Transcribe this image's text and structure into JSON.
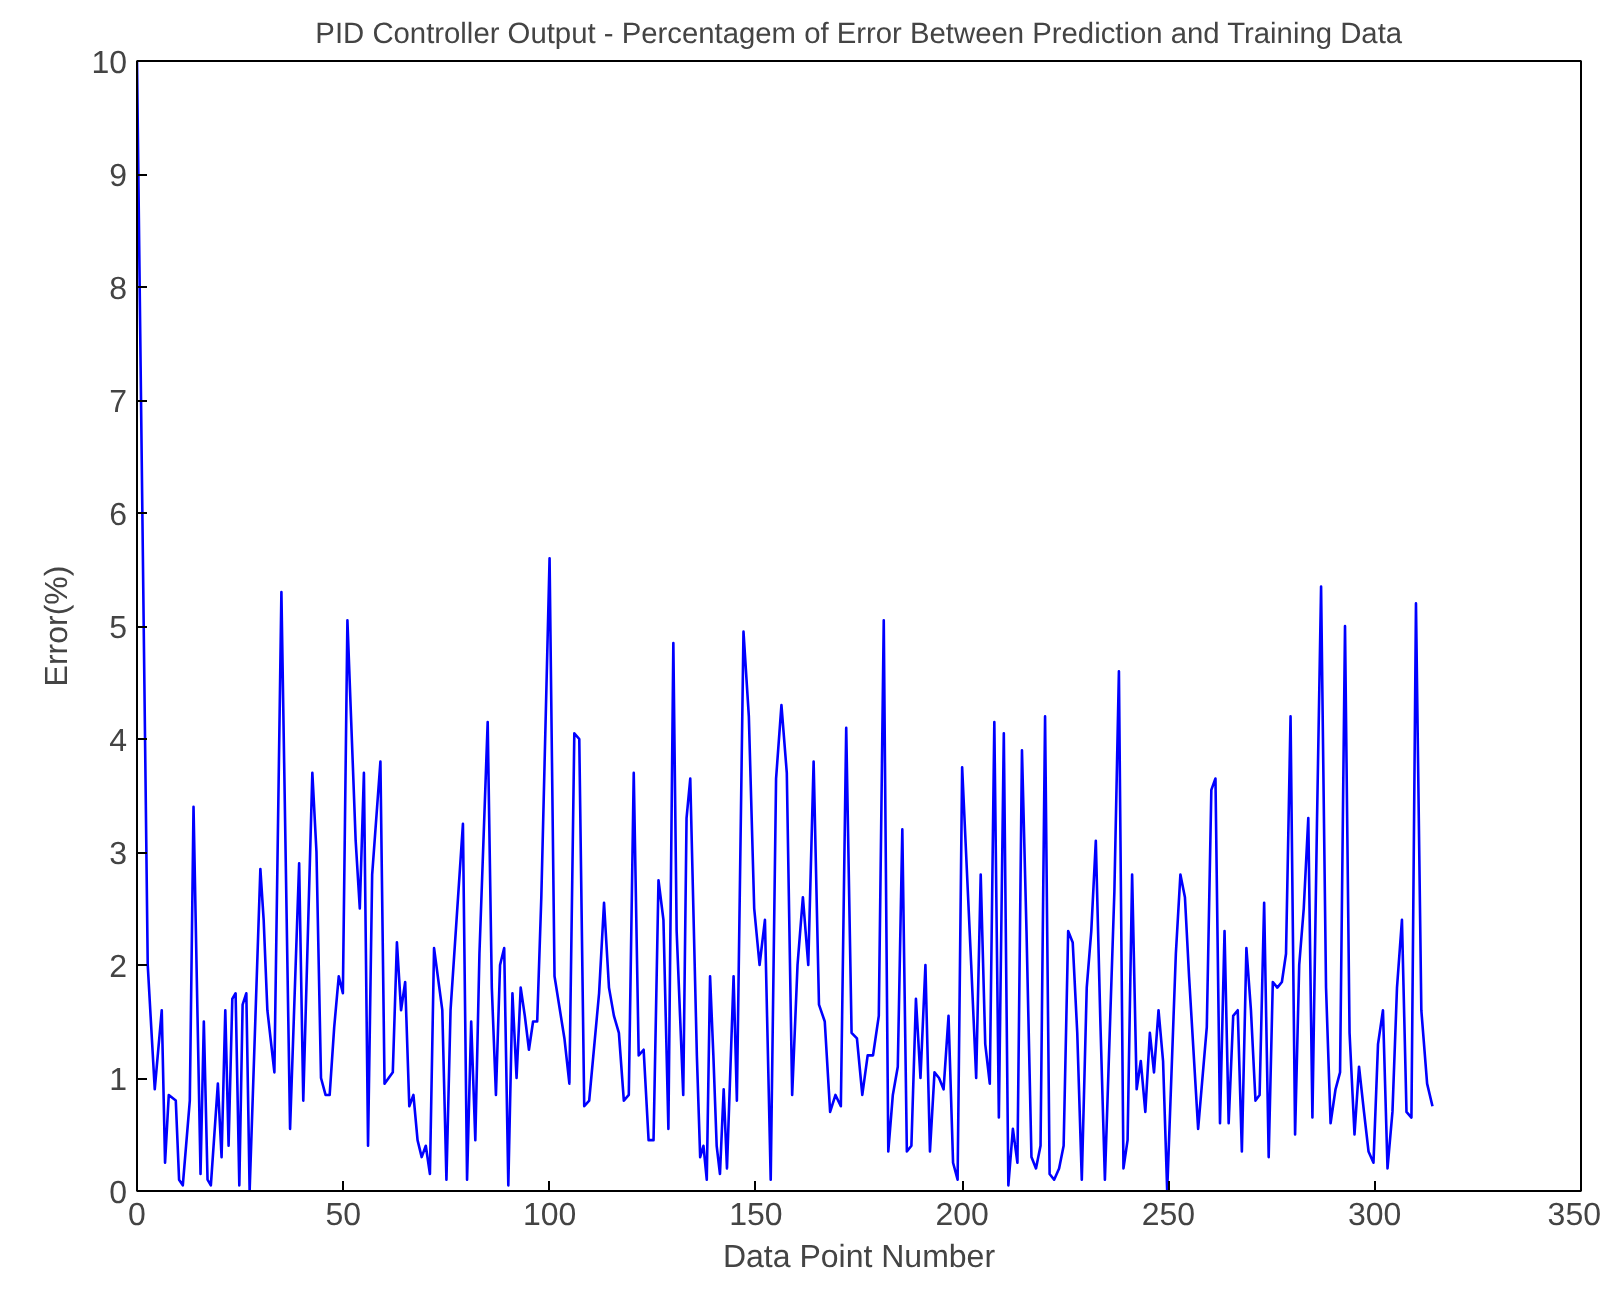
{
  "chart_data": {
    "type": "line",
    "title": "PID Controller Output - Percentagem of Error Between Prediction and Training Data",
    "xlabel": "Data Point Number",
    "ylabel": "Error(%)",
    "xlim": [
      0,
      350
    ],
    "xticks": [
      0,
      50,
      100,
      150,
      200,
      250,
      300,
      350
    ],
    "ylim": [
      0,
      10
    ],
    "yticks": [
      0,
      1,
      2,
      3,
      4,
      5,
      6,
      7,
      8,
      9,
      10
    ],
    "grid": false,
    "marker": "none",
    "line_style": "solid",
    "series": [
      {
        "color": "#0000ff",
        "x": [
          0,
          2.6,
          4.3,
          6,
          6.8,
          7.7,
          9.4,
          10.2,
          11.1,
          12.8,
          13.7,
          15.4,
          16.2,
          17.1,
          17.9,
          19.6,
          20.5,
          21.4,
          22.2,
          23.1,
          23.9,
          24.8,
          25.6,
          26.5,
          27.3,
          29.9,
          30.7,
          31.6,
          33.3,
          35,
          37.1,
          39.3,
          40.3,
          42.5,
          43.5,
          44.6,
          45.7,
          46.7,
          47.8,
          48.9,
          49.9,
          51,
          53,
          54,
          55,
          56,
          57,
          59,
          60,
          62,
          63,
          64,
          65,
          66,
          67,
          68,
          69,
          70,
          71,
          72,
          74,
          75,
          76,
          78,
          79,
          80,
          81,
          82,
          83,
          85,
          86,
          87,
          88,
          89,
          90,
          91,
          92,
          93,
          94,
          95,
          96,
          97,
          98,
          100,
          101.2,
          103.6,
          104.8,
          106,
          107.2,
          108.4,
          109.6,
          112,
          113.2,
          114.4,
          115.6,
          116.8,
          118,
          119.2,
          120.4,
          121.6,
          122.8,
          124,
          125.2,
          126.4,
          127.6,
          128.8,
          130,
          130.8,
          132.4,
          133.2,
          134.1,
          135.7,
          136.5,
          137.3,
          138.1,
          138.9,
          139.7,
          140.5,
          141.3,
          142.2,
          143,
          144.6,
          145.4,
          147,
          148.3,
          149.6,
          150.9,
          152.2,
          153.6,
          154.9,
          156.2,
          157.5,
          158.8,
          160.1,
          161.4,
          162.7,
          164,
          165.3,
          166.7,
          168,
          169.3,
          170.6,
          171.9,
          173.2,
          174.5,
          175.8,
          177.1,
          178.4,
          179.8,
          181,
          182.1,
          183.2,
          184.4,
          185.5,
          186.6,
          187.7,
          188.8,
          189.9,
          191.1,
          192.2,
          193.3,
          194.4,
          195.5,
          196.7,
          197.8,
          198.9,
          200,
          202.2,
          203.4,
          204.5,
          205.6,
          206.7,
          207.8,
          208.9,
          210.1,
          211.2,
          212.3,
          213.4,
          214.5,
          215.6,
          216.8,
          217.9,
          219,
          220.1,
          221.2,
          222.3,
          223.5,
          224.6,
          225.7,
          226.8,
          227.9,
          229,
          230.2,
          231.3,
          232.4,
          233.5,
          234.6,
          236.9,
          238,
          239.1,
          240.1,
          241.2,
          242.3,
          243.3,
          244.4,
          245.5,
          246.5,
          247.6,
          248.7,
          249.7,
          251.8,
          252.9,
          254,
          255,
          257.2,
          259.3,
          260.4,
          261.4,
          262.5,
          263.6,
          264.6,
          265.7,
          266.8,
          267.8,
          268.9,
          270,
          271.1,
          272.1,
          273.2,
          274.3,
          275.3,
          276.4,
          277.5,
          278.5,
          279.6,
          280.7,
          281.7,
          282.8,
          283.9,
          284.9,
          286,
          287,
          288.2,
          289.3,
          290.5,
          291.6,
          292.8,
          293.9,
          295.1,
          296.2,
          297.4,
          298.5,
          299.7,
          300.8,
          302,
          303.1,
          304.3,
          305.4,
          306.6,
          307.7,
          308.9,
          310,
          311.3,
          312.7,
          314
        ],
        "values": [
          10,
          2.0,
          0.9,
          1.6,
          0.25,
          0.85,
          0.8,
          0.1,
          0.05,
          0.8,
          3.4,
          0.15,
          1.5,
          0.1,
          0.05,
          0.95,
          0.3,
          1.6,
          0.4,
          1.7,
          1.75,
          0.05,
          1.65,
          1.75,
          0.0,
          2.85,
          2.4,
          1.6,
          1.05,
          5.3,
          0.55,
          2.9,
          0.8,
          3.7,
          3.0,
          1.0,
          0.85,
          0.85,
          1.45,
          1.9,
          1.75,
          5.05,
          3.1,
          2.5,
          3.7,
          0.4,
          2.8,
          3.8,
          0.95,
          1.05,
          2.2,
          1.6,
          1.85,
          0.75,
          0.85,
          0.45,
          0.3,
          0.4,
          0.15,
          2.15,
          1.6,
          0.1,
          1.6,
          2.7,
          3.25,
          0.1,
          1.5,
          0.45,
          2.1,
          4.15,
          1.8,
          0.85,
          2.0,
          2.15,
          0.05,
          1.75,
          1.0,
          1.8,
          1.55,
          1.25,
          1.5,
          1.5,
          2.6,
          5.6,
          1.9,
          1.35,
          0.95,
          4.05,
          4.0,
          0.75,
          0.8,
          1.75,
          2.55,
          1.8,
          1.55,
          1.4,
          0.8,
          0.85,
          3.7,
          1.2,
          1.25,
          0.45,
          0.45,
          2.75,
          2.4,
          0.55,
          4.85,
          2.3,
          0.85,
          3.3,
          3.65,
          1.2,
          0.3,
          0.4,
          0.1,
          1.9,
          1.2,
          0.4,
          0.15,
          0.9,
          0.2,
          1.9,
          0.8,
          4.95,
          4.2,
          2.5,
          2.0,
          2.4,
          0.1,
          3.65,
          4.3,
          3.7,
          0.85,
          2.0,
          2.6,
          2.0,
          3.8,
          1.65,
          1.5,
          0.7,
          0.85,
          0.75,
          4.1,
          1.4,
          1.35,
          0.85,
          1.2,
          1.2,
          1.55,
          5.05,
          0.35,
          0.85,
          1.1,
          3.2,
          0.35,
          0.4,
          1.7,
          1.0,
          2.0,
          0.35,
          1.05,
          1.0,
          0.9,
          1.55,
          0.25,
          0.1,
          3.75,
          2.0,
          1.0,
          2.8,
          1.3,
          0.95,
          4.15,
          0.65,
          4.05,
          0.05,
          0.55,
          0.25,
          3.9,
          2.3,
          0.3,
          0.2,
          0.4,
          4.2,
          0.15,
          0.1,
          0.2,
          0.4,
          2.3,
          2.2,
          1.4,
          0.1,
          1.8,
          2.3,
          3.1,
          1.5,
          0.1,
          2.65,
          4.6,
          0.2,
          0.45,
          2.8,
          0.9,
          1.15,
          0.7,
          1.4,
          1.05,
          1.6,
          1.15,
          0.0,
          2.1,
          2.8,
          2.6,
          1.9,
          0.55,
          1.45,
          3.55,
          3.65,
          0.6,
          2.3,
          0.6,
          1.55,
          1.6,
          0.35,
          2.15,
          1.6,
          0.8,
          0.85,
          2.55,
          0.3,
          1.85,
          1.8,
          1.85,
          2.1,
          4.2,
          0.5,
          2.0,
          2.5,
          3.3,
          0.65,
          3.25,
          5.35,
          1.8,
          0.6,
          0.9,
          1.05,
          5.0,
          1.4,
          0.5,
          1.1,
          0.7,
          0.35,
          0.25,
          1.3,
          1.6,
          0.2,
          0.7,
          1.8,
          2.4,
          0.7,
          0.65,
          5.2,
          1.6,
          0.95,
          0.75
        ]
      }
    ]
  }
}
